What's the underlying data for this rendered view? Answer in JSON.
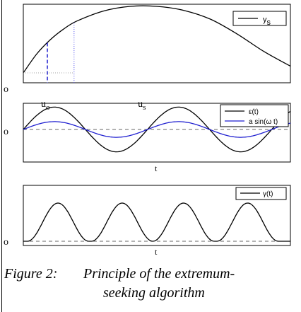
{
  "chart_data": [
    {
      "type": "line",
      "panel": "static-map",
      "series": [
        {
          "name": "y_s",
          "x": [
            0,
            0.05,
            0.1,
            0.15,
            0.2,
            0.3,
            0.4,
            0.5,
            0.6,
            0.7,
            0.8,
            0.9,
            1.0
          ],
          "y": [
            0.0,
            0.28,
            0.49,
            0.65,
            0.77,
            0.92,
            0.99,
            0.99,
            0.93,
            0.8,
            0.58,
            0.32,
            0.1
          ]
        }
      ],
      "legend": [
        "y_s"
      ],
      "ytick_labels": [
        "o"
      ],
      "xtick_labels": [
        "u_o",
        "u_s"
      ],
      "markers": {
        "u_o": 0.09,
        "u_s": 0.45
      },
      "xlim": [
        0,
        1
      ],
      "ylim": [
        0,
        1
      ],
      "legend_position": "top-right",
      "grid": false
    },
    {
      "type": "line",
      "panel": "perturbation",
      "series": [
        {
          "name": "ε(t)",
          "amplitude": 1.0,
          "period": 0.465,
          "color": "#000000"
        },
        {
          "name": "a sin(ω t)",
          "amplitude": 0.35,
          "period": 0.465,
          "color": "#1f1fd0"
        }
      ],
      "legend": [
        "ε(t)",
        "a sin(ω t)"
      ],
      "ytick_labels": [
        "o"
      ],
      "xlabel": "t",
      "reference_line": 0,
      "xlim": [
        0,
        1
      ],
      "ylim": [
        -1.2,
        1.2
      ],
      "legend_position": "top-right",
      "grid": false
    },
    {
      "type": "line",
      "panel": "gradient-estimate",
      "series": [
        {
          "name": "γ(t)",
          "peaks": [
            0.13,
            0.37,
            0.6,
            0.84
          ],
          "peak_value": 0.65,
          "color": "#000000"
        }
      ],
      "legend": [
        "γ(t)"
      ],
      "ytick_labels": [
        "o"
      ],
      "xlabel": "t",
      "reference_line": 0,
      "xlim": [
        0,
        1
      ],
      "ylim": [
        -0.08,
        1
      ],
      "legend_position": "top-right",
      "grid": false
    }
  ],
  "caption": {
    "label": "Figure 2:",
    "line1": "Principle of the extremum-",
    "line2": "seeking algorithm"
  }
}
